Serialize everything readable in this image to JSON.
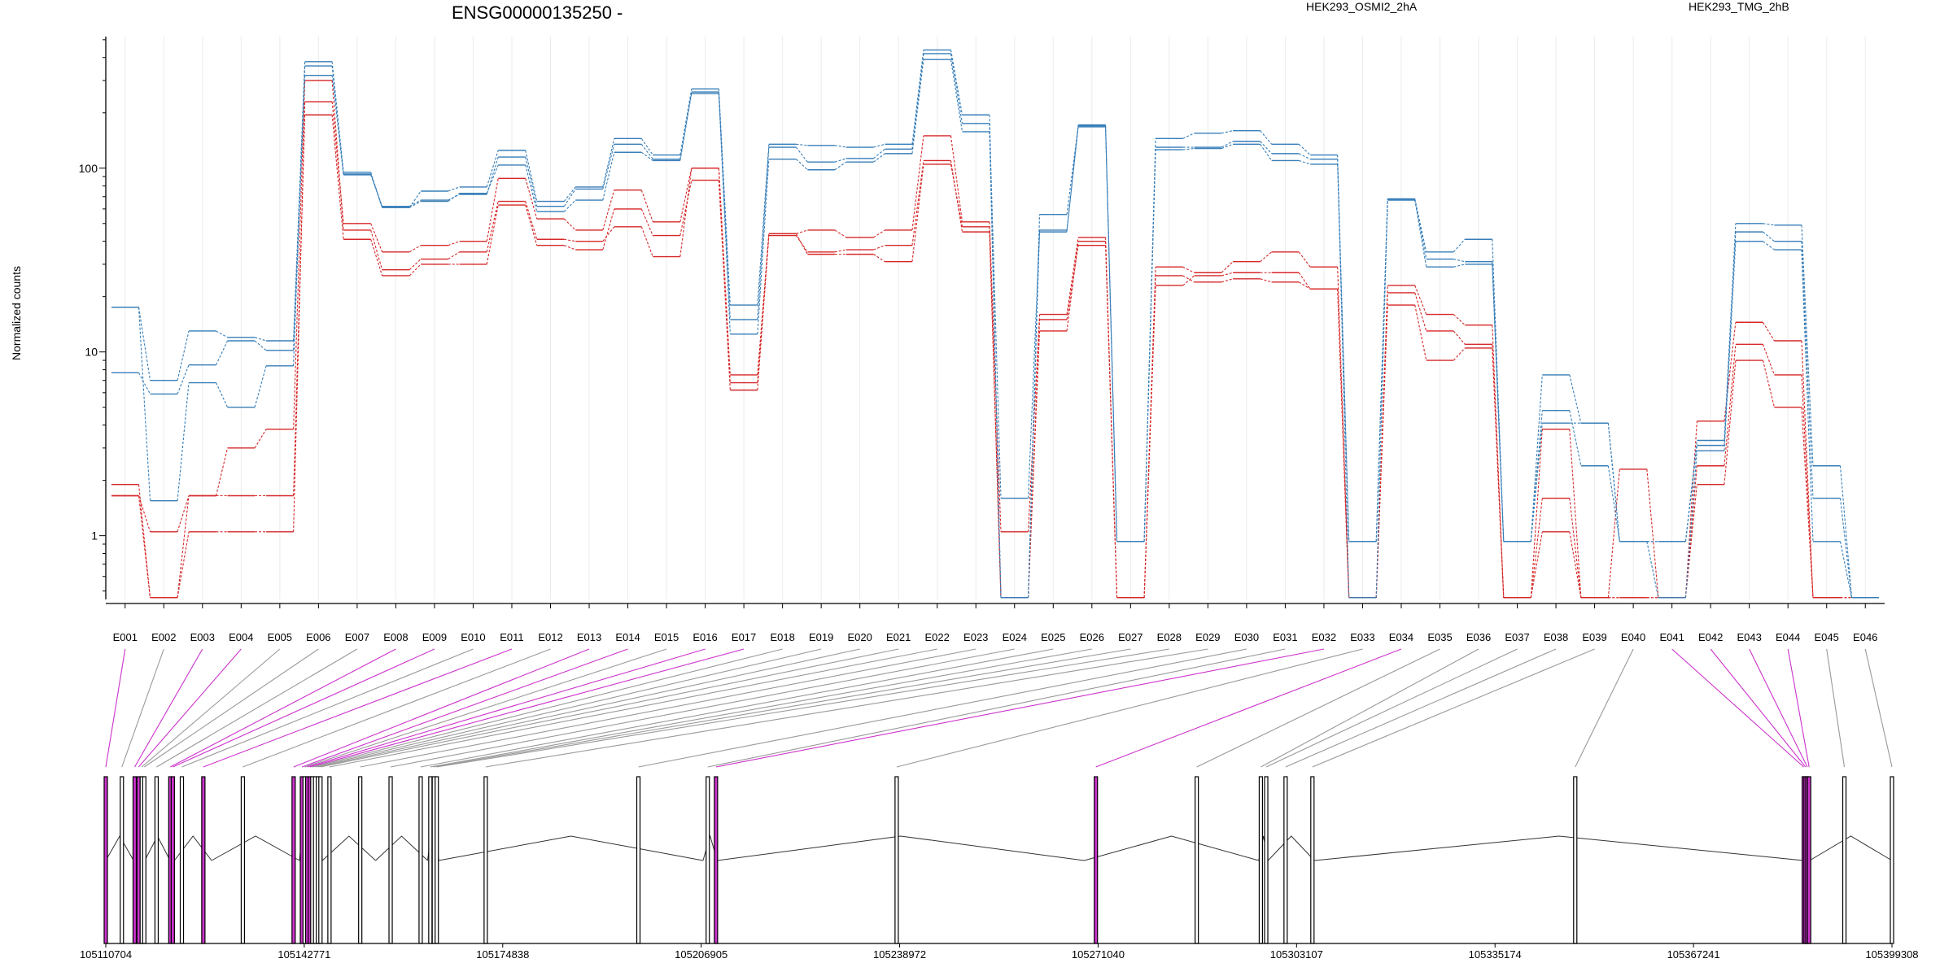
{
  "chart_data": {
    "type": "line",
    "title": "ENSG00000135250 -",
    "ylabel": "Normalized counts",
    "y_scale": "log",
    "y_tick_labels": [
      "1",
      "10",
      "100"
    ],
    "y_ticks": [
      1,
      10,
      100
    ],
    "ylim": [
      0.45,
      520
    ],
    "floor_value": 0.46,
    "grid": "x-only",
    "legend": [
      {
        "name": "HEK293_OSMI2_2hA",
        "color": "#d62728"
      },
      {
        "name": "HEK293_TMG_2hB",
        "color": "#377eb8"
      }
    ],
    "categories": [
      "E001",
      "E002",
      "E003",
      "E004",
      "E005",
      "E006",
      "E007",
      "E008",
      "E009",
      "E010",
      "E011",
      "E012",
      "E013",
      "E014",
      "E015",
      "E016",
      "E017",
      "E018",
      "E019",
      "E020",
      "E021",
      "E022",
      "E023",
      "E024",
      "E025",
      "E026",
      "E027",
      "E028",
      "E029",
      "E030",
      "E031",
      "E032",
      "E033",
      "E034",
      "E035",
      "E036",
      "E037",
      "E038",
      "E039",
      "E040",
      "E041",
      "E042",
      "E043",
      "E044",
      "E045",
      "E046"
    ],
    "series": [
      {
        "group": "HEK293_OSMI2_2hA",
        "color": "#d62728",
        "values": [
          1.9,
          0.46,
          1.05,
          1.05,
          1.05,
          230,
          50,
          35,
          38,
          40,
          88,
          53,
          46,
          76,
          51,
          100,
          7.5,
          44,
          46,
          42,
          46,
          150,
          51,
          1.05,
          16,
          42,
          0.46,
          29,
          27,
          31,
          35,
          29,
          0.46,
          23,
          16,
          14,
          0.46,
          3.8,
          0.46,
          2.3,
          0.46,
          4.2,
          14.5,
          11.5,
          0.46,
          0.46
        ]
      },
      {
        "group": "HEK293_OSMI2_2hA",
        "color": "#d62728",
        "values": [
          1.65,
          0.46,
          1.65,
          3.0,
          3.8,
          300,
          46,
          28,
          32,
          35,
          66,
          41,
          40,
          48,
          33,
          100,
          6.8,
          44,
          34,
          34,
          31,
          105,
          48,
          0.46,
          13,
          40,
          0.46,
          26,
          24,
          25,
          24,
          22,
          0.46,
          18,
          9,
          10.5,
          0.46,
          1.05,
          0.46,
          0.46,
          0.46,
          1.9,
          9,
          5,
          0.46,
          0.46
        ]
      },
      {
        "group": "HEK293_OSMI2_2hA",
        "color": "#d62728",
        "values": [
          1.65,
          1.05,
          1.65,
          1.65,
          1.65,
          195,
          41,
          26,
          30,
          30,
          63,
          38,
          36,
          60,
          43,
          86,
          6.2,
          43,
          35,
          36,
          38,
          110,
          45,
          0.46,
          15,
          38,
          0.46,
          23,
          26,
          27,
          27,
          22,
          0.46,
          21,
          13,
          11,
          0.46,
          1.6,
          0.46,
          0.46,
          0.46,
          2.4,
          11,
          7.5,
          0.46,
          0.46
        ]
      },
      {
        "group": "HEK293_TMG_2hB",
        "color": "#377eb8",
        "values": [
          17.5,
          7,
          13,
          12,
          11.5,
          380,
          95,
          61,
          75,
          79,
          125,
          66,
          79,
          145,
          118,
          270,
          18,
          135,
          133,
          130,
          135,
          440,
          195,
          0.46,
          56,
          170,
          0.93,
          145,
          155,
          160,
          135,
          118,
          0.46,
          68,
          35,
          41,
          0.93,
          7.5,
          4.1,
          0.93,
          0.93,
          3.3,
          50,
          49,
          2.4,
          0.46
        ]
      },
      {
        "group": "HEK293_TMG_2hB",
        "color": "#377eb8",
        "values": [
          7.7,
          5.9,
          8.5,
          11.5,
          10.2,
          320,
          92,
          62,
          67,
          72,
          115,
          62,
          77,
          135,
          112,
          260,
          15,
          130,
          108,
          113,
          127,
          420,
          175,
          1.6,
          45,
          172,
          0.93,
          130,
          130,
          140,
          120,
          112,
          0.93,
          68,
          32,
          31,
          0.93,
          4.8,
          2.4,
          0.93,
          0.93,
          3.1,
          45,
          40,
          1.6,
          0.46
        ]
      },
      {
        "group": "HEK293_TMG_2hB",
        "color": "#377eb8",
        "values": [
          17.5,
          1.55,
          6.8,
          5.0,
          8.4,
          360,
          93,
          61,
          66,
          73,
          104,
          58,
          67,
          122,
          110,
          255,
          12.5,
          112,
          98,
          108,
          120,
          390,
          158,
          0.46,
          46,
          168,
          0.93,
          126,
          128,
          135,
          110,
          105,
          0.93,
          67,
          29,
          30,
          0.93,
          4.1,
          4.1,
          0.93,
          0.46,
          2.9,
          40,
          36,
          0.93,
          0.46
        ]
      }
    ],
    "gene_model": {
      "position_ticks": [
        "105110704",
        "105142771",
        "105174838",
        "105206905",
        "105238972",
        "105271040",
        "105303107",
        "105335174",
        "105367241",
        "105399308"
      ],
      "exon_positions": [
        105110704,
        105115200,
        105116300,
        105117000,
        105121100,
        105121800,
        105127800,
        105142000,
        105142771,
        105143500,
        105144200,
        105145000,
        105145700,
        105154300,
        105162700,
        105163700,
        105164500,
        105207200,
        105209500,
        105268800,
        105297000,
        105298500,
        105306000,
        105385000,
        105385500,
        105386000,
        105399308
      ],
      "highlighted_exons": [
        "E001",
        "E003",
        "E004",
        "E008",
        "E009",
        "E011",
        "E013",
        "E014",
        "E016",
        "E017",
        "E032",
        "E034",
        "E041",
        "E042",
        "E043",
        "E044"
      ],
      "highlight_color": "#cc33cc",
      "plain_color": "#999999"
    }
  }
}
